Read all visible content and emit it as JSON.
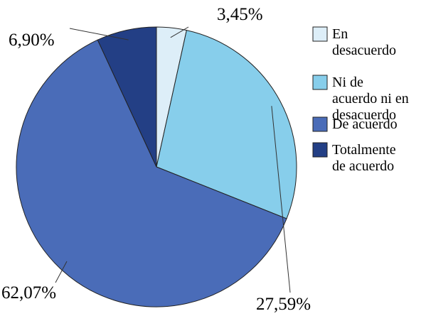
{
  "chart_data": {
    "type": "pie",
    "title": "",
    "legend_placement": "right",
    "categories": [
      "En desacuerdo",
      "Ni de acuerdo ni en desacuerdo",
      "De acuerdo",
      "Totalmente de acuerdo"
    ],
    "values": [
      3.45,
      27.59,
      62.07,
      6.9
    ],
    "data_labels": [
      "3,45%",
      "27,59%",
      "62,07%",
      "6,90%"
    ],
    "legend_lines": [
      [
        "En",
        "desacuerdo"
      ],
      [
        "Ni de",
        "acuerdo ni en",
        "desacuerdo"
      ],
      [
        "De acuerdo"
      ],
      [
        "Totalmente",
        "de acuerdo"
      ]
    ],
    "colors": [
      "#DDEEF8",
      "#87CEEB",
      "#4A6CB8",
      "#233F85"
    ],
    "start_angle_deg": 0,
    "direction": "clockwise"
  }
}
